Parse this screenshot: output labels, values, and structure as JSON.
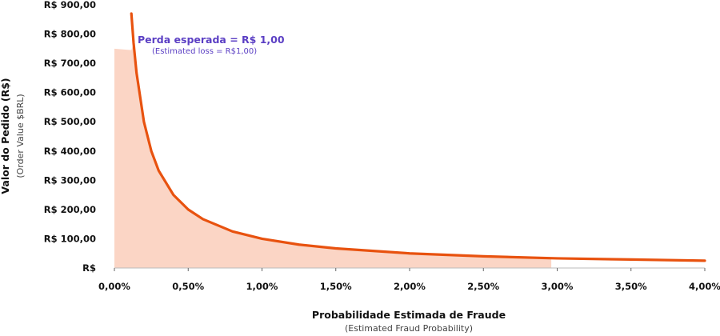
{
  "chart_data": {
    "type": "line",
    "xlabel": "Probabilidade Estimada de Fraude",
    "xlabel_sub": "(Estimated Fraud Probability)",
    "ylabel": "Valor do Pedido (R$)",
    "ylabel_sub": "(Order Value $BRL)",
    "x_ticks": [
      "0,00%",
      "0,50%",
      "1,00%",
      "1,50%",
      "2,00%",
      "2,50%",
      "3,00%",
      "3,50%",
      "4,00%"
    ],
    "y_ticks": [
      "R$",
      "R$ 100,00",
      "R$ 200,00",
      "R$ 300,00",
      "R$ 400,00",
      "R$ 500,00",
      "R$ 600,00",
      "R$ 700,00",
      "R$ 800,00",
      "R$ 900,00"
    ],
    "xlim": [
      0,
      0.04
    ],
    "ylim": [
      0,
      900
    ],
    "series": [
      {
        "x": [
          0.00115,
          0.0013,
          0.0015,
          0.002,
          0.0025,
          0.003,
          0.004,
          0.005,
          0.006,
          0.008,
          0.01,
          0.0125,
          0.015,
          0.02,
          0.025,
          0.03,
          0.035,
          0.04
        ],
        "y": [
          870,
          769,
          667,
          500,
          400,
          333,
          250,
          200,
          167,
          125,
          100,
          80,
          67,
          50,
          40,
          33,
          29,
          25
        ],
        "color": "#e8520f"
      }
    ],
    "shaded_region": {
      "x": [
        0,
        0.00115,
        0.0013,
        0.0015,
        0.002,
        0.0025,
        0.003,
        0.004,
        0.005,
        0.006,
        0.008,
        0.01,
        0.0125,
        0.015,
        0.02,
        0.025,
        0.0296
      ],
      "y": [
        750,
        745,
        769,
        667,
        500,
        400,
        333,
        250,
        200,
        167,
        125,
        100,
        80,
        67,
        50,
        40,
        34
      ],
      "color": "#fbd5c5"
    },
    "annotation": {
      "text": "Perda esperada = R$ 1,00",
      "subtext": "(Estimated loss = R$1,00)",
      "color": "#5b3fc4"
    }
  }
}
